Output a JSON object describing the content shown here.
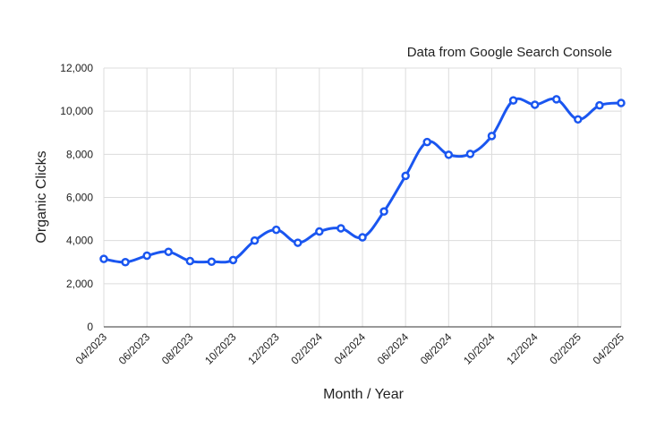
{
  "chart_data": {
    "type": "line",
    "annotation": "Data from Google Search Console",
    "xlabel": "Month / Year",
    "ylabel": "Organic Clicks",
    "ylim": [
      0,
      12000
    ],
    "yticks": [
      "0",
      "2,000",
      "4,000",
      "6,000",
      "8,000",
      "10,000",
      "12,000"
    ],
    "xtick_labels": [
      "04/2023",
      "06/2023",
      "08/2023",
      "10/2023",
      "12/2023",
      "02/2024",
      "04/2024",
      "06/2024",
      "08/2024",
      "10/2024",
      "12/2024",
      "02/2025",
      "04/2025"
    ],
    "grid": true,
    "color": "#1a56f0",
    "series": [
      {
        "x": [
          "04/2023",
          "05/2023",
          "06/2023",
          "07/2023",
          "08/2023",
          "09/2023",
          "10/2023",
          "11/2023",
          "12/2023",
          "01/2024",
          "02/2024",
          "03/2024",
          "04/2024",
          "05/2024",
          "06/2024",
          "07/2024",
          "08/2024",
          "09/2024",
          "10/2024",
          "11/2024",
          "12/2024",
          "01/2025",
          "02/2025",
          "03/2025",
          "04/2025"
        ],
        "values": [
          3150,
          3000,
          3300,
          3480,
          3050,
          3020,
          3100,
          4000,
          4500,
          3900,
          4420,
          4570,
          4150,
          5350,
          7000,
          8570,
          7980,
          8020,
          8850,
          10500,
          10300,
          10550,
          9620,
          10270,
          10380
        ]
      }
    ]
  }
}
